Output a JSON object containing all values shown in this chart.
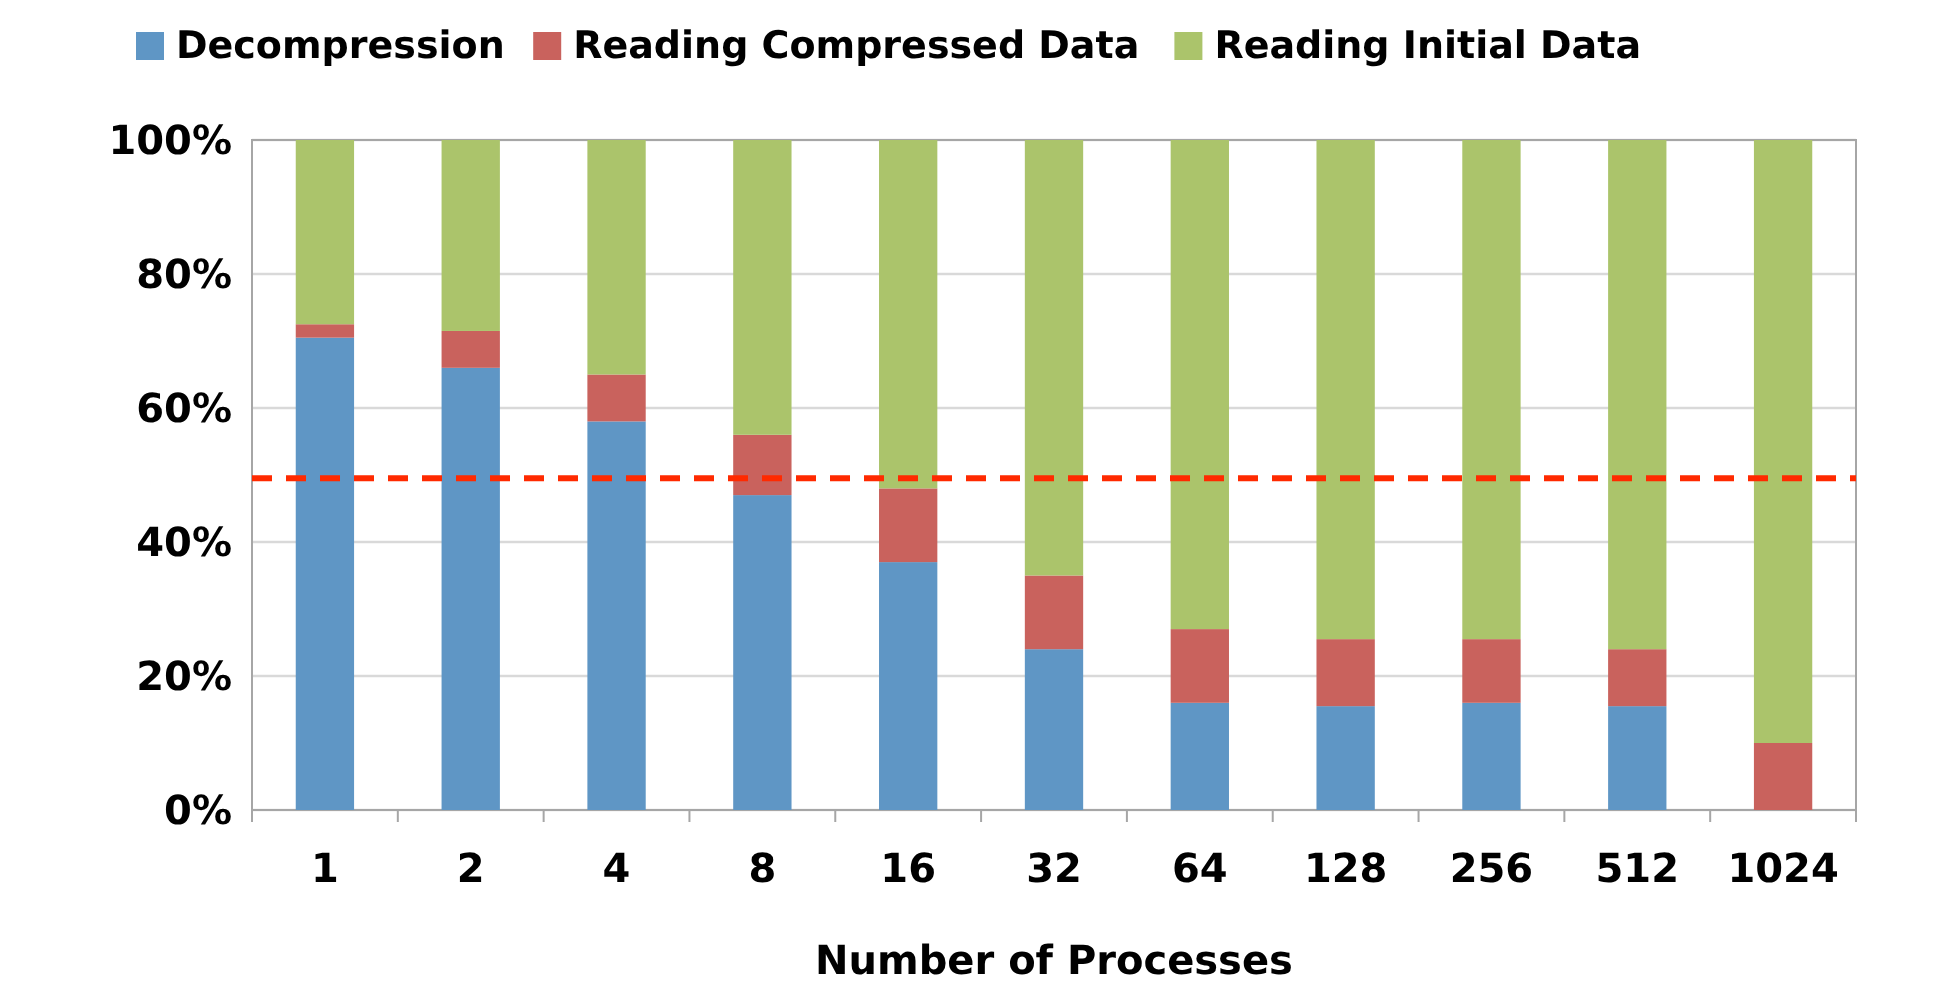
{
  "chart_data": {
    "type": "bar",
    "stacked": true,
    "xlabel": "Number of Processes",
    "categories": [
      "1",
      "2",
      "4",
      "8",
      "16",
      "32",
      "64",
      "128",
      "256",
      "512",
      "1024"
    ],
    "series": [
      {
        "name": "Decompression",
        "color": "#5f96c5",
        "values": [
          70.5,
          66,
          58,
          47,
          37,
          24,
          16,
          15.5,
          16,
          15.5,
          0
        ]
      },
      {
        "name": "Reading Compressed Data",
        "color": "#c9625d",
        "values": [
          2,
          5.5,
          7,
          9,
          11,
          11,
          11,
          10,
          9.5,
          8.5,
          10
        ]
      },
      {
        "name": "Reading Initial Data",
        "color": "#abc46b",
        "values": [
          27.5,
          28.5,
          35,
          44,
          52,
          65,
          73,
          74.5,
          74.5,
          76,
          90
        ]
      }
    ],
    "ylim": [
      0,
      100
    ],
    "yticks": [
      {
        "value": 0,
        "label": "0%"
      },
      {
        "value": 20,
        "label": "20%"
      },
      {
        "value": 40,
        "label": "40%"
      },
      {
        "value": 60,
        "label": "60%"
      },
      {
        "value": 80,
        "label": "80%"
      },
      {
        "value": 100,
        "label": "100%"
      }
    ],
    "grid": "y",
    "legend": "top",
    "ref_lines": [
      {
        "axis": "y",
        "value": 49.5,
        "color": "#ff2a00",
        "line_style": "dashed"
      }
    ]
  }
}
